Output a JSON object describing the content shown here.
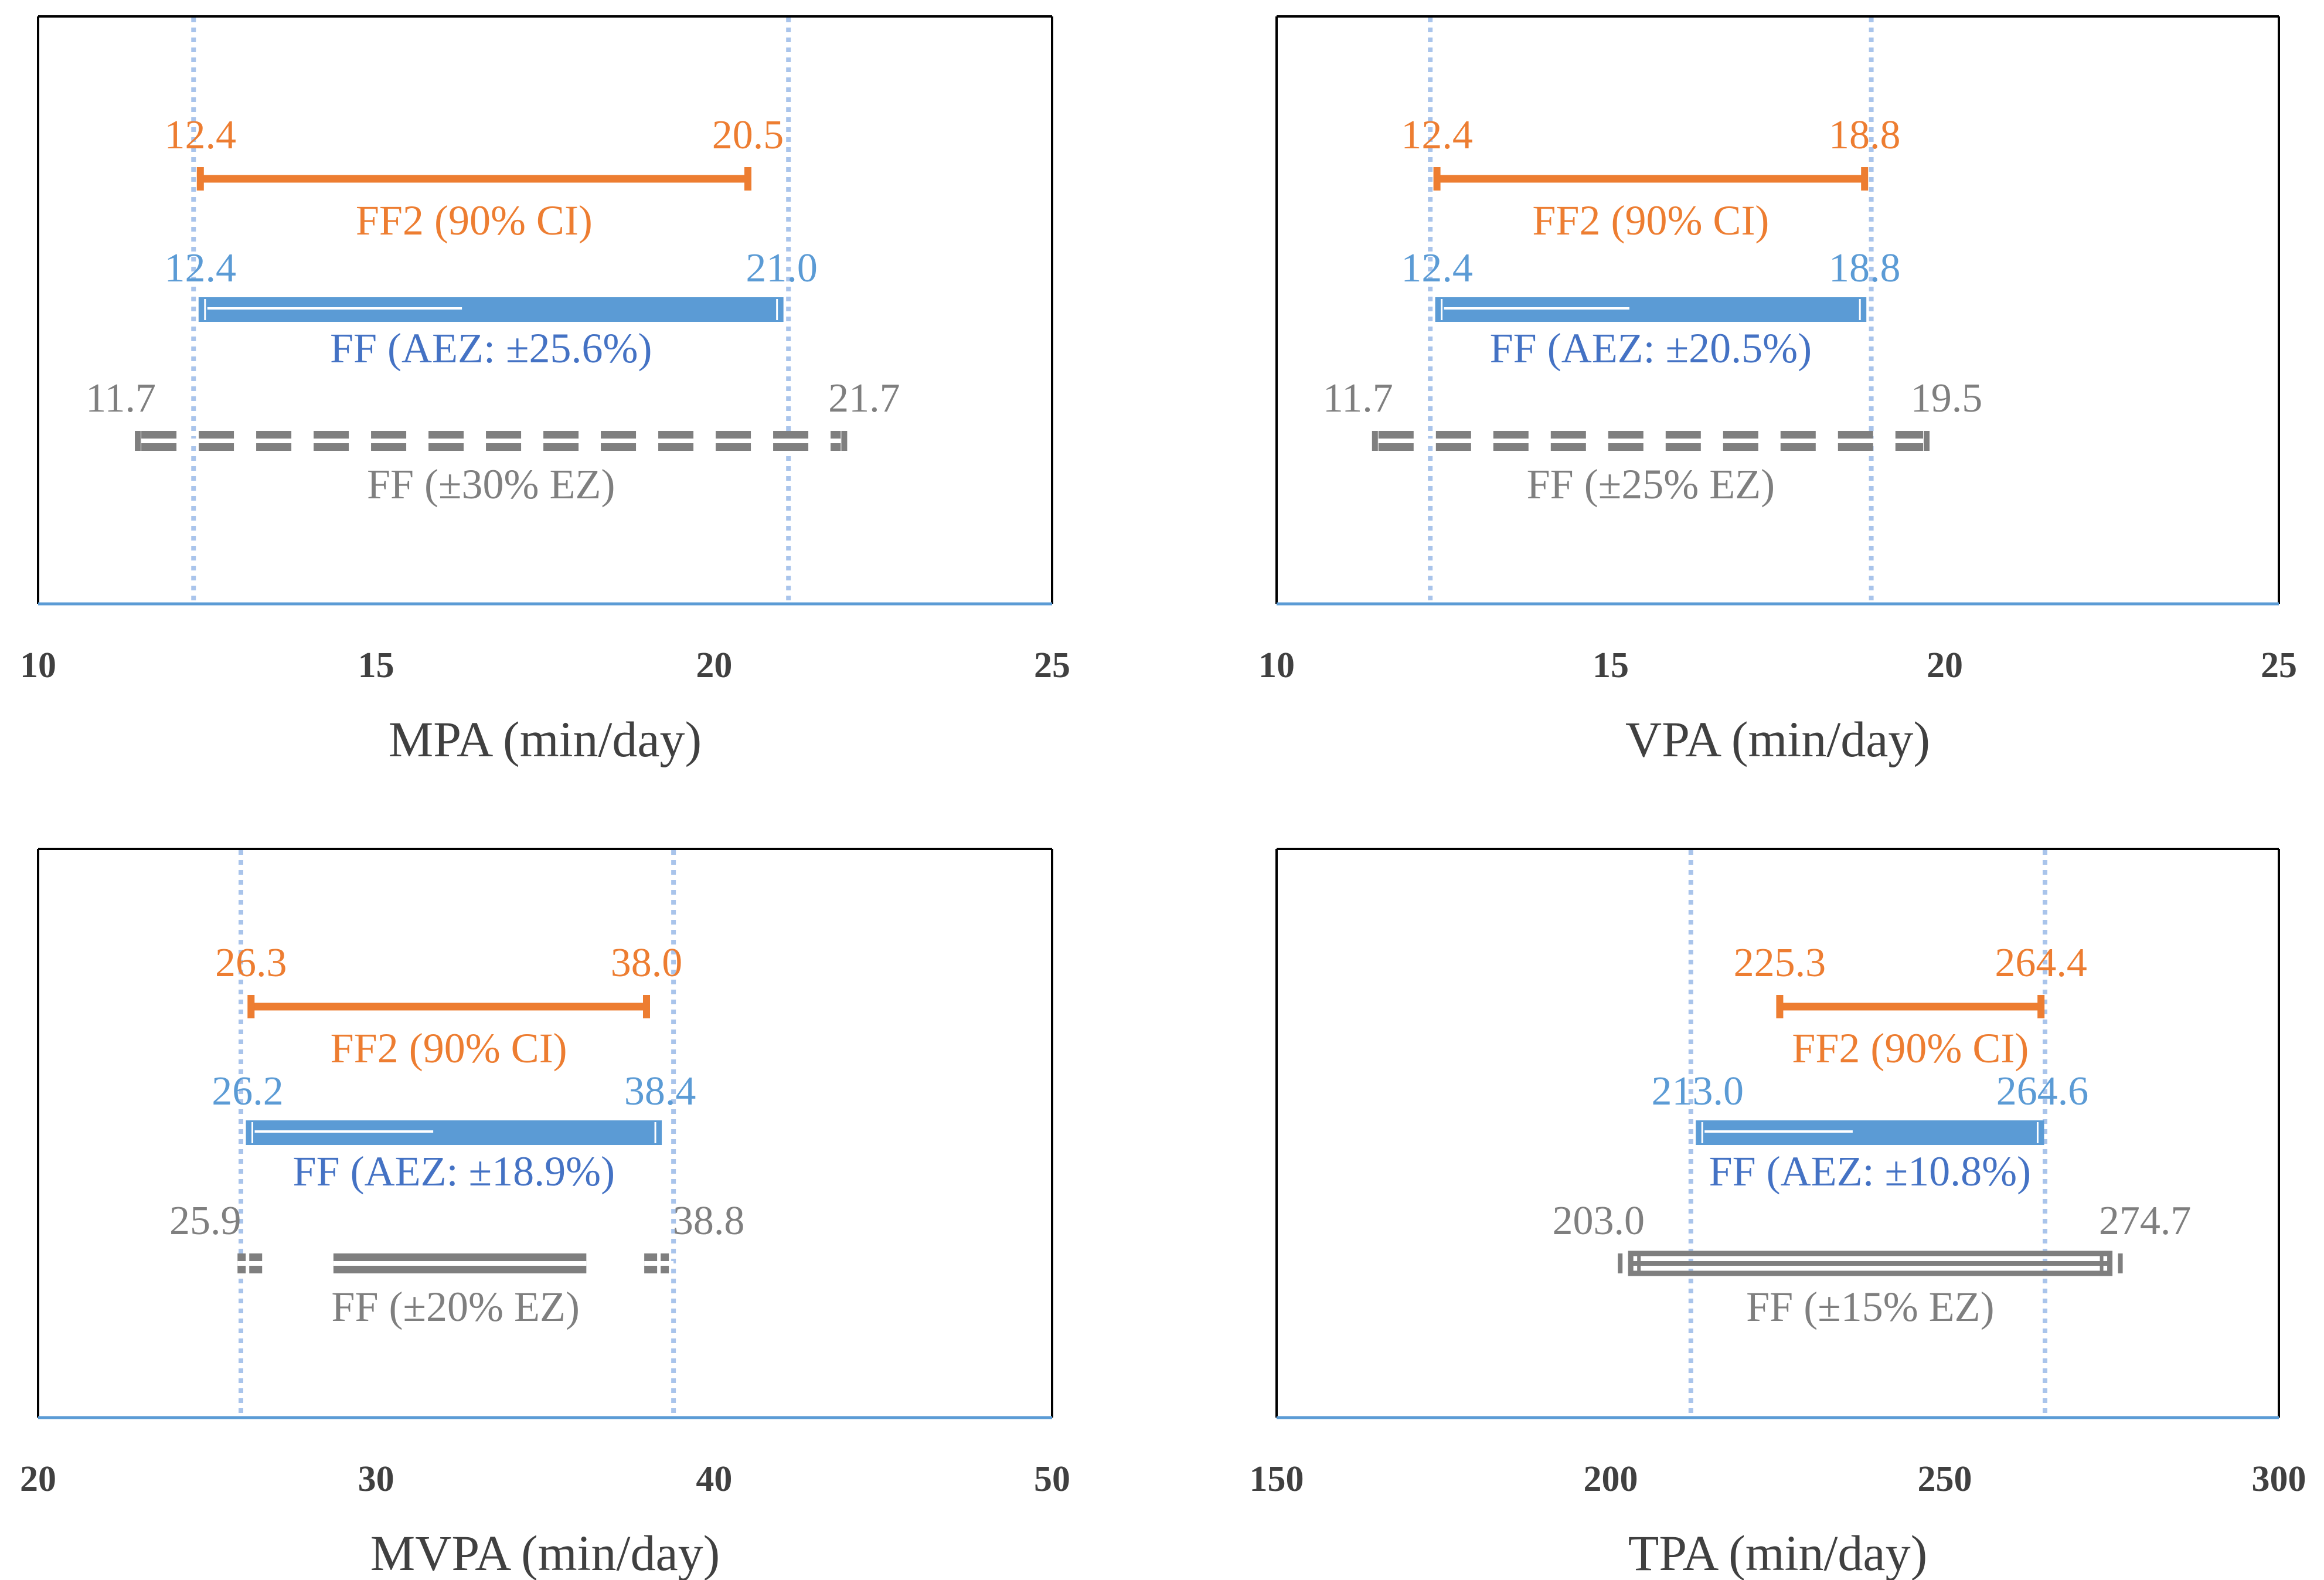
{
  "colors": {
    "ff2": "#ED7D31",
    "ff_aez_bar": "#5B9BD5",
    "ff_aez_label": "#4472C4",
    "ff_ez": "#7F7F7F",
    "ref_line": "#A9C4EB",
    "axis_line": "#5B9BD5",
    "frame": "#000000"
  },
  "chart_data": [
    {
      "type": "interval",
      "xlabel": "MPA (min/day)",
      "xlim": [
        10,
        25
      ],
      "ticks": [
        "10",
        "15",
        "20",
        "25"
      ],
      "ref_lines": [
        12.3,
        21.1
      ],
      "ff2": {
        "label": "FF2 (90% CI)",
        "low": 12.4,
        "high": 20.5,
        "low_text": "12.4",
        "high_text": "20.5"
      },
      "ff_aez": {
        "label": "FF (AEZ: ±25.6%)",
        "low": 12.4,
        "high": 21.0,
        "low_text": "12.4",
        "high_text": "21.0"
      },
      "ff_ez": {
        "label": "FF (±30% EZ)",
        "low": 11.7,
        "high": 21.7,
        "low_text": "11.7",
        "high_text": "21.7",
        "style": "dashed"
      }
    },
    {
      "type": "interval",
      "xlabel": "VPA (min/day)",
      "xlim": [
        10,
        25
      ],
      "ticks": [
        "10",
        "15",
        "20",
        "25"
      ],
      "ref_lines": [
        12.3,
        18.9
      ],
      "ff2": {
        "label": "FF2 (90% CI)",
        "low": 12.4,
        "high": 18.8,
        "low_text": "12.4",
        "high_text": "18.8"
      },
      "ff_aez": {
        "label": "FF (AEZ: ±20.5%)",
        "low": 12.4,
        "high": 18.8,
        "low_text": "12.4",
        "high_text": "18.8"
      },
      "ff_ez": {
        "label": "FF (±25% EZ)",
        "low": 11.7,
        "high": 19.5,
        "low_text": "11.7",
        "high_text": "19.5",
        "style": "dashed"
      }
    },
    {
      "type": "interval",
      "xlabel": "MVPA (min/day)",
      "xlim": [
        20,
        50
      ],
      "ticks": [
        "20",
        "30",
        "40",
        "50"
      ],
      "ref_lines": [
        26.0,
        38.8
      ],
      "ff2": {
        "label": "FF2 (90% CI)",
        "low": 26.3,
        "high": 38.0,
        "low_text": "26.3",
        "high_text": "38.0"
      },
      "ff_aez": {
        "label": "FF (AEZ: ±18.9%)",
        "low": 26.2,
        "high": 38.4,
        "low_text": "26.2",
        "high_text": "38.4"
      },
      "ff_ez": {
        "label": "FF (±20% EZ)",
        "low": 25.9,
        "high": 38.8,
        "low_text": "25.9",
        "high_text": "38.8",
        "style": "broken"
      }
    },
    {
      "type": "interval",
      "xlabel": "TPA (min/day)",
      "xlim": [
        150,
        300
      ],
      "ticks": [
        "150",
        "200",
        "250",
        "300"
      ],
      "ref_lines": [
        212.0,
        265.0
      ],
      "ff2": {
        "label": "FF2 (90% CI)",
        "low": 225.3,
        "high": 264.4,
        "low_text": "225.3",
        "high_text": "264.4"
      },
      "ff_aez": {
        "label": "FF (AEZ: ±10.8%)",
        "low": 213.0,
        "high": 264.6,
        "low_text": "213.0",
        "high_text": "264.6"
      },
      "ff_ez": {
        "label": "FF (±15% EZ)",
        "low": 203.0,
        "high": 274.7,
        "low_text": "203.0",
        "high_text": "274.7",
        "style": "double"
      }
    }
  ]
}
